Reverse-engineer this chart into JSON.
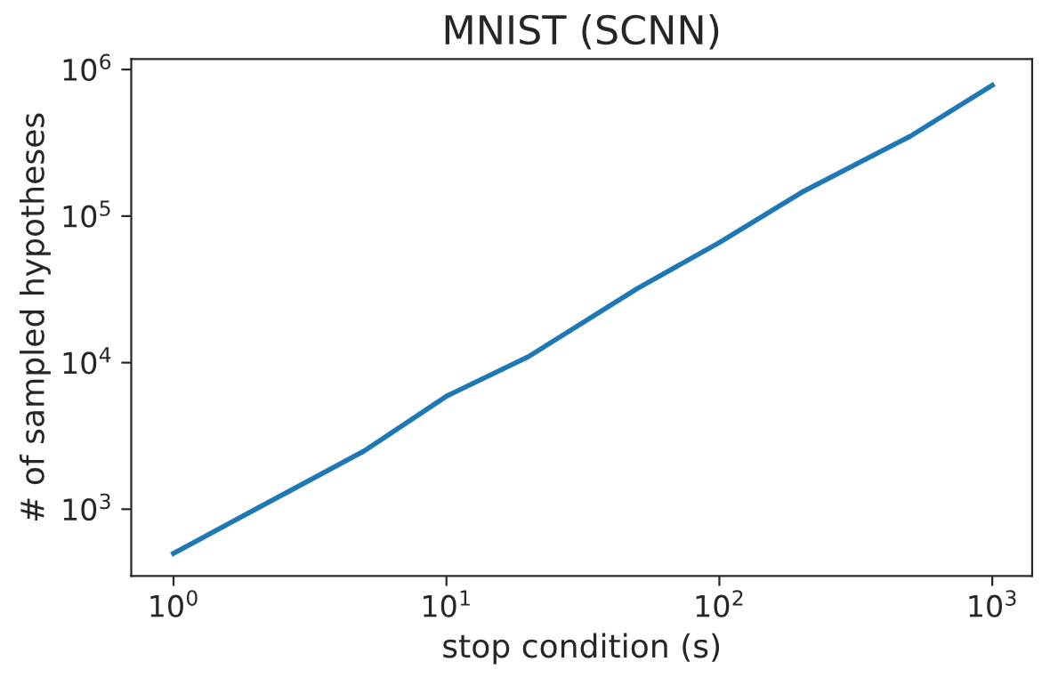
{
  "chart_data": {
    "type": "line",
    "title": "MNIST (SCNN)",
    "xlabel": "stop condition (s)",
    "ylabel": "# of sampled hypotheses",
    "log": "xy",
    "grid": false,
    "x": [
      1,
      2,
      5,
      10,
      20,
      50,
      100,
      200,
      500,
      1000
    ],
    "series": [
      {
        "color": "#1f77b4",
        "values": [
          500,
          1000,
          2500,
          5900,
          11000,
          32000,
          66000,
          145000,
          350000,
          780000
        ]
      }
    ],
    "xlim": [
      0.7,
      1400
    ],
    "ylim": [
      350,
      1180000
    ],
    "xticks": [
      {
        "value": 1,
        "label": "10$^{0}$"
      },
      {
        "value": 10,
        "label": "10$^{1}$"
      },
      {
        "value": 100,
        "label": "10$^{2}$"
      },
      {
        "value": 1000,
        "label": "10$^{3}$"
      }
    ],
    "yticks": [
      {
        "value": 1000,
        "label": "10$^{3}$"
      },
      {
        "value": 10000,
        "label": "10$^{4}$"
      },
      {
        "value": 100000,
        "label": "10$^{5}$"
      },
      {
        "value": 1000000,
        "label": "10$^{6}$"
      }
    ]
  }
}
